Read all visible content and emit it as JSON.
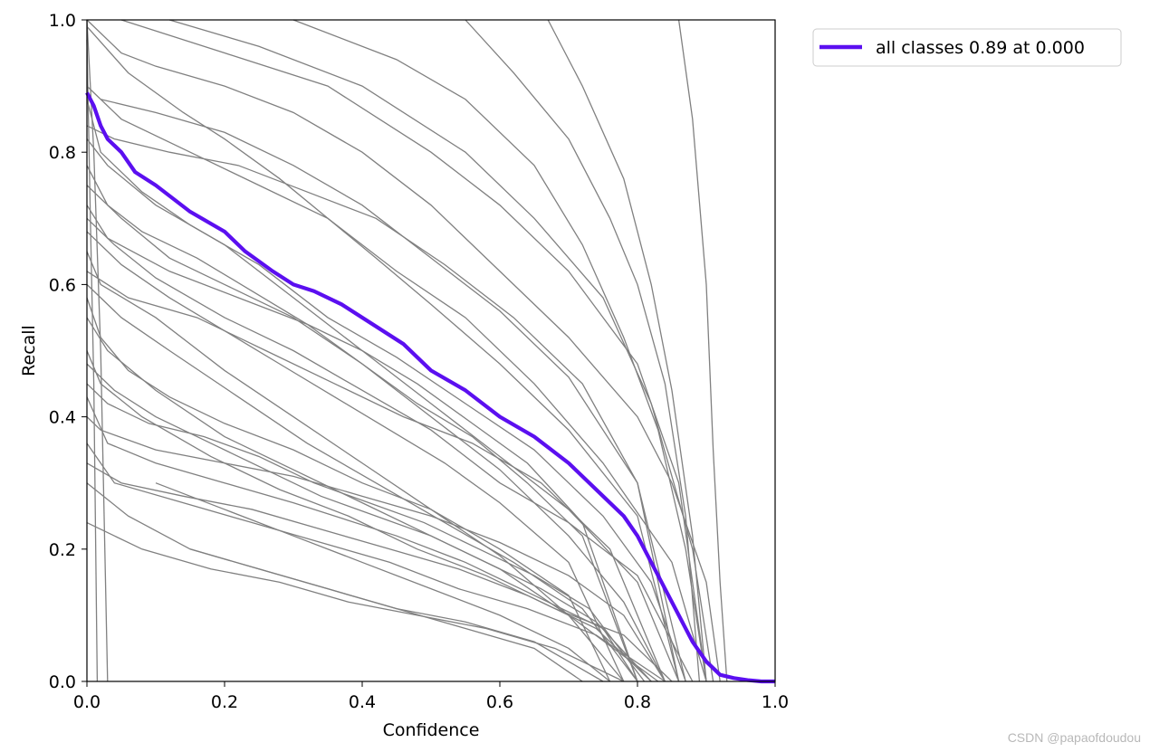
{
  "chart_data": {
    "type": "line",
    "title": "",
    "xlabel": "Confidence",
    "ylabel": "Recall",
    "xlim": [
      0.0,
      1.0
    ],
    "ylim": [
      0.0,
      1.0
    ],
    "xticks": [
      "0.0",
      "0.2",
      "0.4",
      "0.6",
      "0.8",
      "1.0"
    ],
    "yticks": [
      "0.0",
      "0.2",
      "0.4",
      "0.6",
      "0.8",
      "1.0"
    ],
    "grid": false,
    "legend_position": "outside-top-right",
    "colors": {
      "all_classes": "#5b0ff0",
      "per_class": "#808080"
    },
    "series": [
      {
        "name": "all classes 0.89 at 0.000",
        "x": [
          0.0,
          0.01,
          0.02,
          0.03,
          0.05,
          0.07,
          0.1,
          0.15,
          0.2,
          0.23,
          0.27,
          0.3,
          0.33,
          0.37,
          0.4,
          0.43,
          0.46,
          0.5,
          0.55,
          0.6,
          0.65,
          0.7,
          0.75,
          0.78,
          0.8,
          0.83,
          0.86,
          0.88,
          0.9,
          0.92,
          0.94,
          0.96,
          0.98,
          1.0
        ],
        "y": [
          0.89,
          0.87,
          0.84,
          0.82,
          0.8,
          0.77,
          0.75,
          0.71,
          0.68,
          0.65,
          0.62,
          0.6,
          0.59,
          0.57,
          0.55,
          0.53,
          0.51,
          0.47,
          0.44,
          0.4,
          0.37,
          0.33,
          0.28,
          0.25,
          0.22,
          0.16,
          0.1,
          0.06,
          0.03,
          0.01,
          0.005,
          0.002,
          0.0,
          0.0
        ]
      }
    ],
    "class_curves": [
      {
        "x": [
          0.0,
          0.05,
          0.1,
          0.2,
          0.3,
          0.4,
          0.5,
          0.6,
          0.7,
          0.8,
          0.85,
          0.9,
          0.92
        ],
        "y": [
          1.0,
          0.95,
          0.93,
          0.9,
          0.86,
          0.8,
          0.72,
          0.62,
          0.52,
          0.4,
          0.3,
          0.15,
          0.0
        ]
      },
      {
        "x": [
          0.0,
          0.05,
          0.15,
          0.25,
          0.35,
          0.45,
          0.55,
          0.65,
          0.75,
          0.85,
          0.9
        ],
        "y": [
          0.9,
          0.85,
          0.8,
          0.75,
          0.7,
          0.62,
          0.55,
          0.45,
          0.33,
          0.18,
          0.0
        ]
      },
      {
        "x": [
          0.0,
          0.02,
          0.08,
          0.15,
          0.25,
          0.35,
          0.45,
          0.55,
          0.65,
          0.75,
          0.82,
          0.87
        ],
        "y": [
          0.88,
          0.8,
          0.74,
          0.69,
          0.63,
          0.55,
          0.49,
          0.42,
          0.35,
          0.25,
          0.15,
          0.0
        ]
      },
      {
        "x": [
          0.0,
          0.03,
          0.1,
          0.2,
          0.3,
          0.4,
          0.5,
          0.6,
          0.7,
          0.8,
          0.86
        ],
        "y": [
          0.82,
          0.78,
          0.72,
          0.66,
          0.58,
          0.5,
          0.42,
          0.34,
          0.26,
          0.15,
          0.0
        ]
      },
      {
        "x": [
          0.0,
          0.05,
          0.12,
          0.2,
          0.3,
          0.4,
          0.5,
          0.6,
          0.7,
          0.78,
          0.84
        ],
        "y": [
          0.75,
          0.7,
          0.64,
          0.6,
          0.55,
          0.48,
          0.4,
          0.32,
          0.22,
          0.12,
          0.0
        ]
      },
      {
        "x": [
          0.0,
          0.04,
          0.1,
          0.2,
          0.3,
          0.4,
          0.5,
          0.6,
          0.7,
          0.8,
          0.88
        ],
        "y": [
          0.7,
          0.66,
          0.61,
          0.55,
          0.5,
          0.44,
          0.38,
          0.3,
          0.24,
          0.16,
          0.0
        ]
      },
      {
        "x": [
          0.0,
          0.02,
          0.1,
          0.2,
          0.3,
          0.4,
          0.5,
          0.6,
          0.7,
          0.78
        ],
        "y": [
          0.65,
          0.6,
          0.55,
          0.47,
          0.4,
          0.33,
          0.26,
          0.19,
          0.1,
          0.0
        ]
      },
      {
        "x": [
          0.0,
          0.05,
          0.12,
          0.22,
          0.32,
          0.42,
          0.52,
          0.62,
          0.72,
          0.8
        ],
        "y": [
          0.6,
          0.55,
          0.5,
          0.43,
          0.36,
          0.3,
          0.24,
          0.18,
          0.11,
          0.0
        ]
      },
      {
        "x": [
          0.0,
          0.03,
          0.1,
          0.2,
          0.3,
          0.4,
          0.5,
          0.6,
          0.7,
          0.83
        ],
        "y": [
          0.55,
          0.5,
          0.44,
          0.37,
          0.32,
          0.27,
          0.22,
          0.17,
          0.1,
          0.0
        ]
      },
      {
        "x": [
          0.0,
          0.02,
          0.08,
          0.18,
          0.28,
          0.38,
          0.48,
          0.58,
          0.68,
          0.78,
          0.85
        ],
        "y": [
          0.5,
          0.45,
          0.4,
          0.34,
          0.29,
          0.25,
          0.2,
          0.16,
          0.11,
          0.07,
          0.0
        ]
      },
      {
        "x": [
          0.0,
          0.03,
          0.1,
          0.2,
          0.3,
          0.45,
          0.55,
          0.65,
          0.75,
          0.8
        ],
        "y": [
          0.43,
          0.36,
          0.33,
          0.3,
          0.27,
          0.22,
          0.18,
          0.13,
          0.08,
          0.0
        ]
      },
      {
        "x": [
          0.0,
          0.04,
          0.14,
          0.24,
          0.34,
          0.44,
          0.54,
          0.64,
          0.74,
          0.84
        ],
        "y": [
          0.36,
          0.3,
          0.27,
          0.24,
          0.21,
          0.18,
          0.14,
          0.11,
          0.07,
          0.0
        ]
      },
      {
        "x": [
          0.0,
          0.06,
          0.15,
          0.25,
          0.35,
          0.45,
          0.55,
          0.65,
          0.75
        ],
        "y": [
          0.3,
          0.25,
          0.2,
          0.17,
          0.14,
          0.11,
          0.09,
          0.06,
          0.0
        ]
      },
      {
        "x": [
          0.0,
          0.08,
          0.18,
          0.28,
          0.38,
          0.48,
          0.58,
          0.68,
          0.78
        ],
        "y": [
          0.24,
          0.2,
          0.17,
          0.15,
          0.12,
          0.1,
          0.08,
          0.05,
          0.0
        ]
      },
      {
        "x": [
          0.05,
          0.2,
          0.35,
          0.5,
          0.6,
          0.7,
          0.8,
          0.86,
          0.9
        ],
        "y": [
          1.0,
          0.95,
          0.9,
          0.8,
          0.72,
          0.62,
          0.48,
          0.3,
          0.0
        ]
      },
      {
        "x": [
          0.12,
          0.25,
          0.4,
          0.55,
          0.65,
          0.75,
          0.82,
          0.88,
          0.91
        ],
        "y": [
          1.0,
          0.96,
          0.9,
          0.8,
          0.7,
          0.58,
          0.42,
          0.2,
          0.0
        ]
      },
      {
        "x": [
          0.3,
          0.45,
          0.55,
          0.65,
          0.72,
          0.78,
          0.83,
          0.87,
          0.9
        ],
        "y": [
          1.0,
          0.94,
          0.88,
          0.78,
          0.66,
          0.52,
          0.38,
          0.2,
          0.0
        ]
      },
      {
        "x": [
          0.55,
          0.62,
          0.7,
          0.76,
          0.8,
          0.84,
          0.87,
          0.89
        ],
        "y": [
          1.0,
          0.92,
          0.82,
          0.7,
          0.6,
          0.45,
          0.25,
          0.0
        ]
      },
      {
        "x": [
          0.67,
          0.72,
          0.78,
          0.82,
          0.85,
          0.88,
          0.9
        ],
        "y": [
          1.0,
          0.9,
          0.76,
          0.6,
          0.44,
          0.22,
          0.0
        ]
      },
      {
        "x": [
          0.86,
          0.88,
          0.9,
          0.91,
          0.92,
          0.93
        ],
        "y": [
          1.0,
          0.85,
          0.6,
          0.35,
          0.15,
          0.0
        ]
      },
      {
        "x": [
          0.0,
          0.06,
          0.14,
          0.2,
          0.28,
          0.35,
          0.42,
          0.5,
          0.6,
          0.7,
          0.8,
          0.86
        ],
        "y": [
          0.99,
          0.92,
          0.86,
          0.82,
          0.76,
          0.7,
          0.64,
          0.57,
          0.48,
          0.38,
          0.25,
          0.0
        ]
      },
      {
        "x": [
          0.0,
          0.03,
          0.08,
          0.16,
          0.24,
          0.32,
          0.4,
          0.48,
          0.56,
          0.64,
          0.72,
          0.8
        ],
        "y": [
          0.78,
          0.72,
          0.68,
          0.64,
          0.59,
          0.54,
          0.48,
          0.42,
          0.37,
          0.3,
          0.22,
          0.0
        ]
      },
      {
        "x": [
          0.0,
          0.05,
          0.12,
          0.2,
          0.28,
          0.36,
          0.44,
          0.52,
          0.6,
          0.7,
          0.78
        ],
        "y": [
          0.68,
          0.63,
          0.58,
          0.53,
          0.48,
          0.43,
          0.38,
          0.33,
          0.27,
          0.18,
          0.0
        ]
      },
      {
        "x": [
          0.0,
          0.02,
          0.06,
          0.12,
          0.2,
          0.3,
          0.4,
          0.5,
          0.6,
          0.7,
          0.76
        ],
        "y": [
          0.58,
          0.52,
          0.47,
          0.43,
          0.39,
          0.35,
          0.3,
          0.26,
          0.2,
          0.13,
          0.0
        ]
      },
      {
        "x": [
          0.0,
          0.04,
          0.1,
          0.18,
          0.26,
          0.34,
          0.42,
          0.5,
          0.58,
          0.66,
          0.74,
          0.82
        ],
        "y": [
          0.48,
          0.44,
          0.4,
          0.36,
          0.32,
          0.28,
          0.25,
          0.22,
          0.18,
          0.14,
          0.09,
          0.0
        ]
      },
      {
        "x": [
          0.0,
          0.04,
          0.12,
          0.22,
          0.32,
          0.42,
          0.52,
          0.62,
          0.72,
          0.8,
          0.86
        ],
        "y": [
          0.84,
          0.82,
          0.8,
          0.78,
          0.74,
          0.7,
          0.63,
          0.55,
          0.45,
          0.3,
          0.0
        ]
      },
      {
        "x": [
          0.02,
          0.1,
          0.2,
          0.3,
          0.4,
          0.5,
          0.6,
          0.7,
          0.8,
          0.87
        ],
        "y": [
          0.88,
          0.86,
          0.83,
          0.78,
          0.72,
          0.64,
          0.56,
          0.46,
          0.3,
          0.0
        ]
      },
      {
        "x": [
          0.0,
          0.06,
          0.16,
          0.26,
          0.36,
          0.46,
          0.56,
          0.66,
          0.76,
          0.84
        ],
        "y": [
          0.62,
          0.58,
          0.55,
          0.5,
          0.45,
          0.4,
          0.36,
          0.3,
          0.2,
          0.0
        ]
      },
      {
        "x": [
          0.0,
          0.03,
          0.12,
          0.22,
          0.32,
          0.4,
          0.48,
          0.56,
          0.64,
          0.72,
          0.8
        ],
        "y": [
          0.72,
          0.67,
          0.62,
          0.58,
          0.54,
          0.5,
          0.45,
          0.39,
          0.33,
          0.24,
          0.0
        ]
      },
      {
        "x": [
          0.0,
          0.02,
          0.1,
          0.2,
          0.3,
          0.4,
          0.5,
          0.6,
          0.7,
          0.78,
          0.84
        ],
        "y": [
          0.4,
          0.38,
          0.35,
          0.33,
          0.31,
          0.28,
          0.25,
          0.21,
          0.16,
          0.1,
          0.0
        ]
      },
      {
        "x": [
          0.0,
          0.05,
          0.14,
          0.24,
          0.34,
          0.44,
          0.54,
          0.64,
          0.74,
          0.82
        ],
        "y": [
          0.33,
          0.3,
          0.28,
          0.26,
          0.23,
          0.2,
          0.17,
          0.13,
          0.08,
          0.0
        ]
      },
      {
        "x": [
          0.0,
          0.03,
          0.09,
          0.17,
          0.25,
          0.33,
          0.41,
          0.49,
          0.57,
          0.65,
          0.73,
          0.81
        ],
        "y": [
          0.45,
          0.42,
          0.39,
          0.37,
          0.34,
          0.3,
          0.27,
          0.24,
          0.2,
          0.16,
          0.11,
          0.0
        ]
      },
      {
        "x": [
          0.1,
          0.2,
          0.3,
          0.4,
          0.5,
          0.6,
          0.7,
          0.76
        ],
        "y": [
          0.3,
          0.26,
          0.22,
          0.18,
          0.14,
          0.1,
          0.05,
          0.0
        ]
      },
      {
        "x": [
          0.15,
          0.25,
          0.35,
          0.45,
          0.55,
          0.65,
          0.72
        ],
        "y": [
          0.2,
          0.17,
          0.14,
          0.11,
          0.08,
          0.05,
          0.0
        ]
      },
      {
        "x": [
          0.0,
          0.01,
          0.02,
          0.03
        ],
        "y": [
          1.0,
          0.8,
          0.5,
          0.0
        ]
      },
      {
        "x": [
          0.0,
          0.005,
          0.01,
          0.015
        ],
        "y": [
          0.97,
          0.7,
          0.45,
          0.0
        ]
      }
    ]
  },
  "watermark": "CSDN @papaofdoudou"
}
